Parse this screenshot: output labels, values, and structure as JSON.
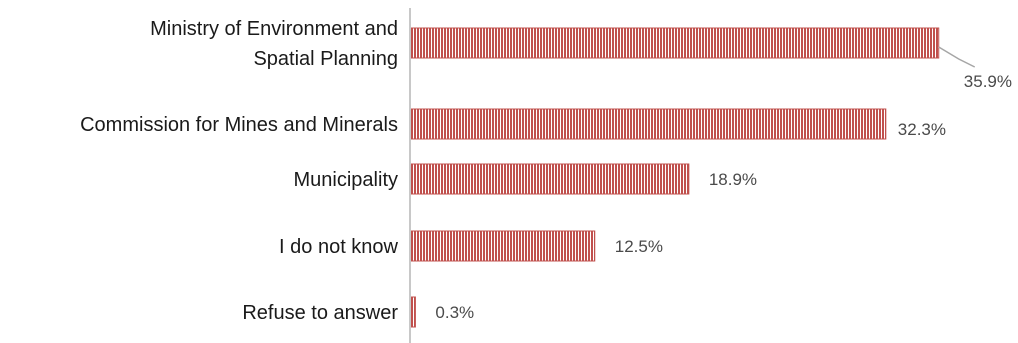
{
  "chart_data": {
    "type": "bar",
    "orientation": "horizontal",
    "categories": [
      [
        "Ministry of Environment and",
        "Spatial Planning"
      ],
      [
        "Commission for Mines and Minerals"
      ],
      [
        "Municipality"
      ],
      [
        "I do not know"
      ],
      [
        "Refuse to answer"
      ]
    ],
    "values": [
      35.9,
      32.3,
      18.9,
      12.5,
      0.3
    ],
    "value_labels": [
      "35.9%",
      "32.3%",
      "18.9%",
      "12.5%",
      "0.3%"
    ],
    "xlim": [
      0,
      40
    ],
    "grid": false,
    "legend": "none",
    "bar_color": "#c0504d",
    "bar_pattern": "vertical-stripes"
  }
}
